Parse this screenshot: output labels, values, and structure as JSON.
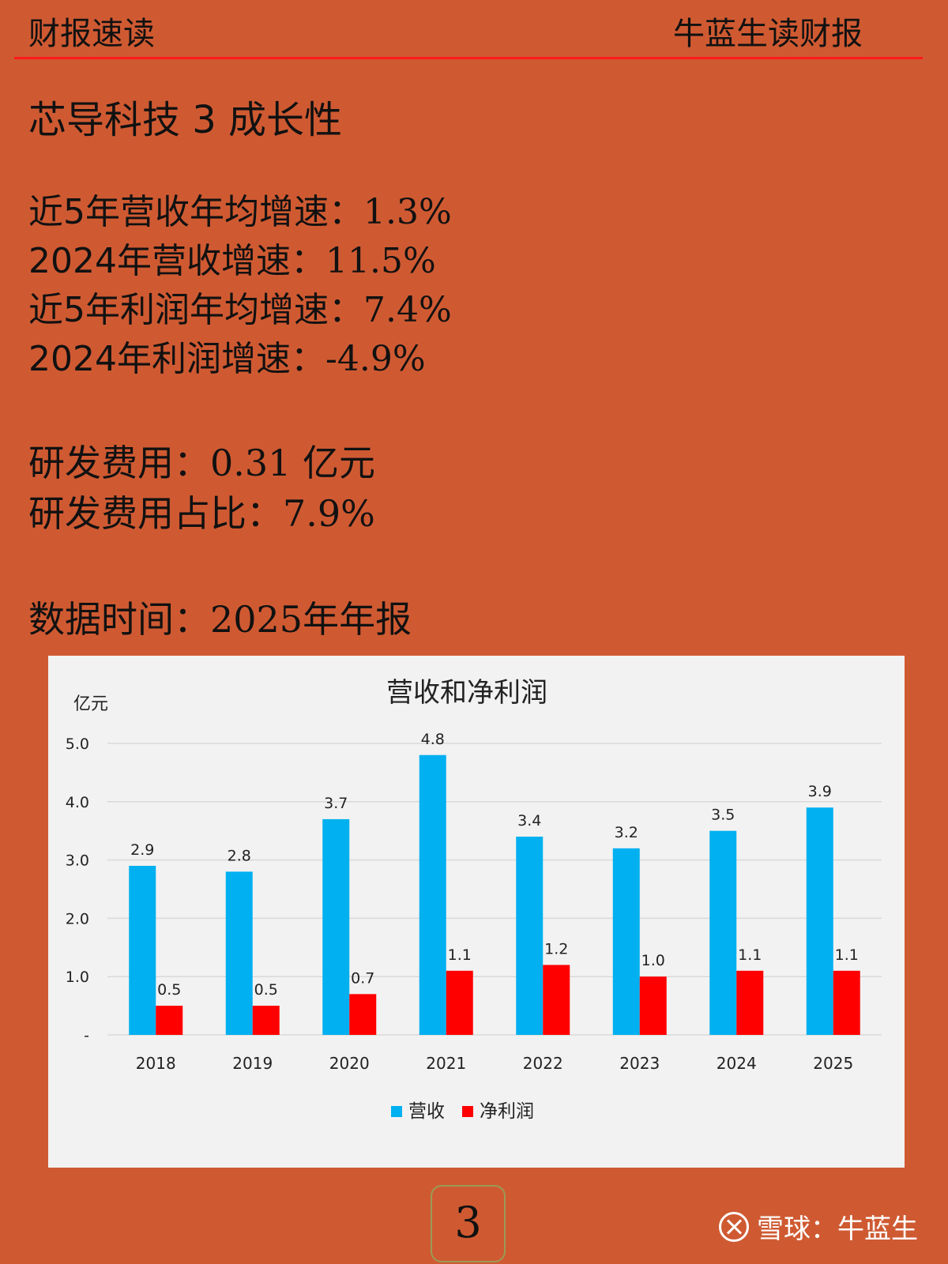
{
  "header": {
    "left": "财报速读",
    "right": "牛蓝生读财报"
  },
  "title": "芯导科技 3 成长性",
  "stats": [
    {
      "label": "近5年营收年均增速：",
      "value": "1.3%"
    },
    {
      "label": "2024年营收增速：",
      "value": "11.5%"
    },
    {
      "label": "近5年利润年均增速：",
      "value": "7.4%"
    },
    {
      "label": "2024年利润增速：",
      "value": "-4.9%"
    }
  ],
  "rd": [
    {
      "label": "研发费用：",
      "value": "0.31 亿元"
    },
    {
      "label": "研发费用占比：",
      "value": "7.9%"
    }
  ],
  "data_time": {
    "label": "数据时间：",
    "value": "2025年年报"
  },
  "page_number": "3",
  "watermark": "雪球：牛蓝生",
  "colors": {
    "background": "#cf5a32",
    "revenue": "#00b0f0",
    "profit": "#ff0000",
    "header_line": "#ff1a1a"
  },
  "chart_data": {
    "type": "bar",
    "title": "营收和净利润",
    "ylabel": "亿元",
    "categories": [
      "2018",
      "2019",
      "2020",
      "2021",
      "2022",
      "2023",
      "2024",
      "2025"
    ],
    "series": [
      {
        "name": "营收",
        "values": [
          2.9,
          2.8,
          3.7,
          4.8,
          3.4,
          3.2,
          3.5,
          3.9
        ],
        "color": "#00b0f0"
      },
      {
        "name": "净利润",
        "values": [
          0.5,
          0.5,
          0.7,
          1.1,
          1.2,
          1.0,
          1.1,
          1.1
        ],
        "color": "#ff0000"
      }
    ],
    "yticks": [
      "-",
      "1.0",
      "2.0",
      "3.0",
      "4.0",
      "5.0"
    ],
    "ylim": [
      0,
      5
    ],
    "grid": true,
    "legend": "bottom"
  }
}
